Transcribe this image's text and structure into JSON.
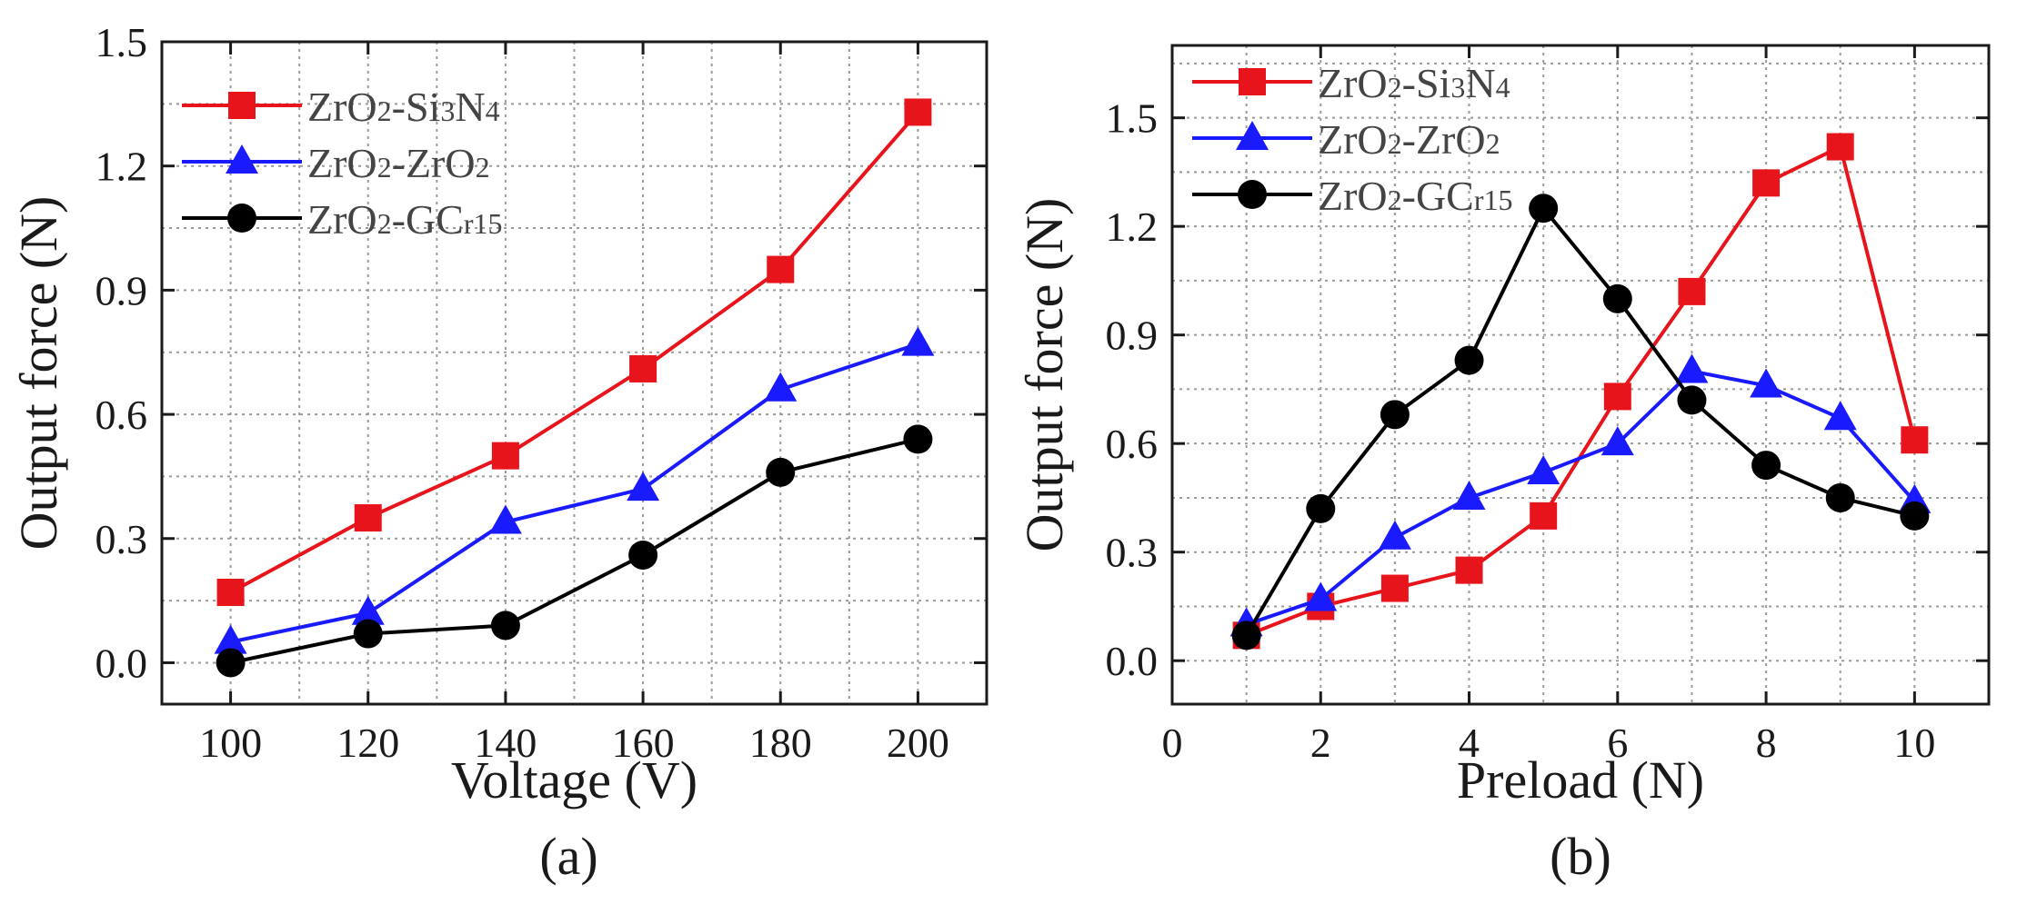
{
  "chart_data": [
    {
      "type": "line",
      "panel_label": "(a)",
      "xlabel": "Voltage (V)",
      "ylabel": "Output force (N)",
      "xlim": [
        90,
        210
      ],
      "ylim": [
        -0.1,
        1.5
      ],
      "xticks": [
        100,
        120,
        140,
        160,
        180,
        200
      ],
      "yticks": [
        0.0,
        0.3,
        0.6,
        0.9,
        1.2,
        1.5
      ],
      "xtick_labels": [
        "100",
        "120",
        "140",
        "160",
        "180",
        "200"
      ],
      "ytick_labels": [
        "0.0",
        "0.3",
        "0.6",
        "0.9",
        "1.2",
        "1.5"
      ],
      "grid": true,
      "legend_position": "top-left",
      "series": [
        {
          "name": "ZrO2-Si3N4",
          "label_parts": [
            [
              "ZrO",
              false
            ],
            [
              "2",
              true
            ],
            [
              "-Si",
              false
            ],
            [
              "3",
              true
            ],
            [
              "N",
              false
            ],
            [
              "4",
              true
            ]
          ],
          "color": "#e8141c",
          "marker": "square",
          "x": [
            100,
            120,
            140,
            160,
            180,
            200
          ],
          "y": [
            0.17,
            0.35,
            0.5,
            0.71,
            0.95,
            1.33
          ]
        },
        {
          "name": "ZrO2-ZrO2",
          "label_parts": [
            [
              "ZrO",
              false
            ],
            [
              "2",
              true
            ],
            [
              "-ZrO",
              false
            ],
            [
              "2",
              true
            ]
          ],
          "color": "#1a1aff",
          "marker": "triangle",
          "x": [
            100,
            120,
            140,
            160,
            180,
            200
          ],
          "y": [
            0.05,
            0.12,
            0.34,
            0.42,
            0.66,
            0.77
          ]
        },
        {
          "name": "ZrO2-GCr15",
          "label_parts": [
            [
              "ZrO",
              false
            ],
            [
              "2",
              true
            ],
            [
              "-GC",
              false
            ],
            [
              "r15",
              true
            ]
          ],
          "color": "#000000",
          "marker": "circle",
          "x": [
            100,
            120,
            140,
            160,
            180,
            200
          ],
          "y": [
            0.0,
            0.07,
            0.09,
            0.26,
            0.46,
            0.54
          ]
        }
      ]
    },
    {
      "type": "line",
      "panel_label": "(b)",
      "xlabel": "Preload (N)",
      "ylabel": "Output force (N)",
      "xlim": [
        0,
        11
      ],
      "ylim": [
        -0.12,
        1.7
      ],
      "xticks": [
        0,
        2,
        4,
        6,
        8,
        10
      ],
      "yticks": [
        0.0,
        0.3,
        0.6,
        0.9,
        1.2,
        1.5
      ],
      "xtick_labels": [
        "0",
        "2",
        "4",
        "6",
        "8",
        "10"
      ],
      "ytick_labels": [
        "0.0",
        "0.3",
        "0.6",
        "0.9",
        "1.2",
        "1.5"
      ],
      "grid": true,
      "legend_position": "top-left",
      "series": [
        {
          "name": "ZrO2-Si3N4",
          "label_parts": [
            [
              "ZrO",
              false
            ],
            [
              "2",
              true
            ],
            [
              "-Si",
              false
            ],
            [
              "3",
              true
            ],
            [
              "N",
              false
            ],
            [
              "4",
              true
            ]
          ],
          "color": "#e8141c",
          "marker": "square",
          "x": [
            1,
            2,
            3,
            4,
            5,
            6,
            7,
            8,
            9,
            10
          ],
          "y": [
            0.07,
            0.15,
            0.2,
            0.25,
            0.4,
            0.73,
            1.02,
            1.32,
            1.42,
            0.61
          ]
        },
        {
          "name": "ZrO2-ZrO2",
          "label_parts": [
            [
              "ZrO",
              false
            ],
            [
              "2",
              true
            ],
            [
              "-ZrO",
              false
            ],
            [
              "2",
              true
            ]
          ],
          "color": "#1a1aff",
          "marker": "triangle",
          "x": [
            1,
            2,
            3,
            4,
            5,
            6,
            7,
            8,
            9,
            10
          ],
          "y": [
            0.1,
            0.17,
            0.34,
            0.45,
            0.52,
            0.6,
            0.8,
            0.76,
            0.67,
            0.44
          ]
        },
        {
          "name": "ZrO2-GCr15",
          "label_parts": [
            [
              "ZrO",
              false
            ],
            [
              "2",
              true
            ],
            [
              "-GC",
              false
            ],
            [
              "r15",
              true
            ]
          ],
          "color": "#000000",
          "marker": "circle",
          "x": [
            1,
            2,
            3,
            4,
            5,
            6,
            7,
            8,
            9,
            10
          ],
          "y": [
            0.07,
            0.42,
            0.68,
            0.83,
            1.25,
            1.0,
            0.72,
            0.54,
            0.45,
            0.4
          ]
        }
      ]
    }
  ]
}
